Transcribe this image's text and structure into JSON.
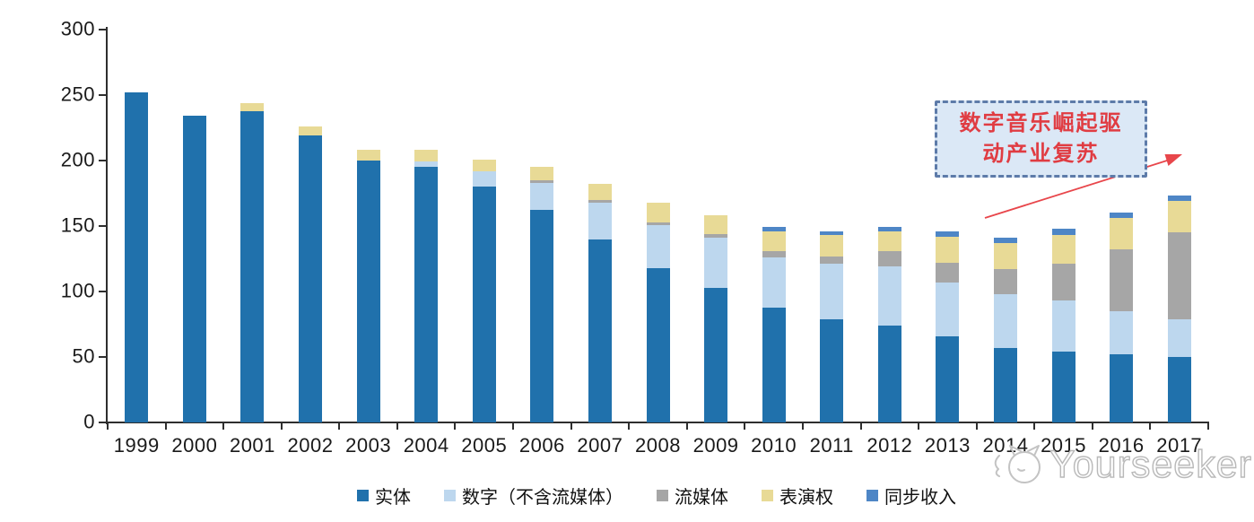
{
  "chart_data": {
    "type": "bar",
    "stacked": true,
    "title": "",
    "xlabel": "",
    "ylabel": "",
    "ylim": [
      0,
      300
    ],
    "yticks": [
      0,
      50,
      100,
      150,
      200,
      250,
      300
    ],
    "grid": false,
    "legend_position": "bottom",
    "categories": [
      "1999",
      "2000",
      "2001",
      "2002",
      "2003",
      "2004",
      "2005",
      "2006",
      "2007",
      "2008",
      "2009",
      "2010",
      "2011",
      "2012",
      "2013",
      "2014",
      "2015",
      "2016",
      "2017"
    ],
    "series": [
      {
        "name": "实体",
        "color": "#2071ac",
        "values": [
          252,
          234,
          238,
          219,
          200,
          195,
          180,
          162,
          140,
          118,
          103,
          88,
          79,
          74,
          66,
          57,
          54,
          52,
          50
        ]
      },
      {
        "name": "数字（不含流媒体）",
        "color": "#bdd7ee",
        "values": [
          0,
          0,
          0,
          0,
          0,
          4,
          12,
          21,
          28,
          33,
          38,
          38,
          42,
          45,
          41,
          41,
          39,
          33,
          29
        ]
      },
      {
        "name": "流媒体",
        "color": "#a6a6a6",
        "values": [
          0,
          0,
          0,
          0,
          0,
          0,
          0,
          2,
          2,
          2,
          3,
          5,
          6,
          12,
          15,
          19,
          28,
          47,
          66
        ]
      },
      {
        "name": "表演权",
        "color": "#e8da96",
        "values": [
          0,
          0,
          6,
          7,
          8,
          9,
          9,
          10,
          12,
          15,
          14,
          15,
          16,
          15,
          20,
          20,
          22,
          24,
          24
        ]
      },
      {
        "name": "同步收入",
        "color": "#4e86c6",
        "values": [
          0,
          0,
          0,
          0,
          0,
          0,
          0,
          0,
          0,
          0,
          0,
          3,
          3,
          3,
          4,
          4,
          5,
          4,
          4
        ]
      }
    ]
  },
  "annotation": {
    "line1": "数字音乐崛起驱",
    "line2": "动产业复苏",
    "text_color": "#e03c42",
    "box_fill": "#dbe8f6",
    "box_border": "#5d7ba9",
    "arrow_color": "#e8464b"
  },
  "watermark": {
    "text": "Yourseeker",
    "logo": "cat-magnifier-logo",
    "color": "#b9b9b9"
  }
}
